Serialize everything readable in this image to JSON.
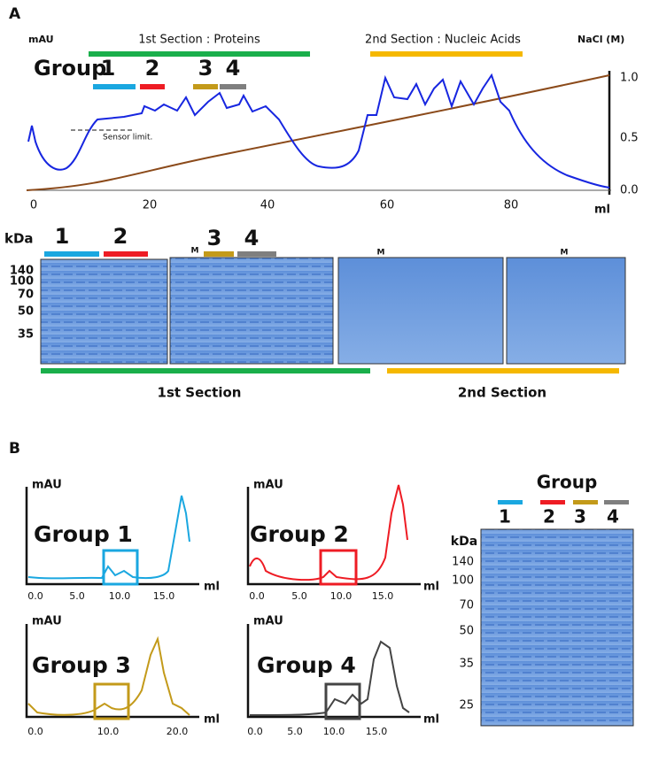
{
  "panel_a": {
    "label": "A",
    "y_label": "mAU",
    "y2_label": "NaCl (M)",
    "x_label": "ml",
    "sections": [
      "1st Section : Proteins",
      "2nd Section : Nucleic Acids"
    ],
    "group_label": "Group",
    "groups": [
      "1",
      "2",
      "3",
      "4"
    ],
    "annotation": "Sensor limit.",
    "xticks": [
      "0",
      "20",
      "40",
      "60",
      "80"
    ],
    "y2ticks": [
      "0.0",
      "0.5",
      "1.0"
    ],
    "gel": {
      "unit": "kDa",
      "markers": [
        "140",
        "100",
        "70",
        "50",
        "35"
      ],
      "lanes": [
        "1",
        "2",
        "3",
        "4"
      ],
      "marker_lanes": [
        "M",
        "M",
        "M"
      ],
      "sections": [
        "1st Section",
        "2nd Section"
      ]
    }
  },
  "panel_b": {
    "label": "B",
    "charts": [
      {
        "y_label": "mAU",
        "title": "Group 1",
        "x_label": "ml",
        "xticks": [
          "0.0",
          "5.0",
          "10.0",
          "15.0"
        ]
      },
      {
        "y_label": "mAU",
        "title": "Group 2",
        "x_label": "ml",
        "xticks": [
          "0.0",
          "5.0",
          "10.0",
          "15.0"
        ]
      },
      {
        "y_label": "mAU",
        "title": "Group 3",
        "x_label": "ml",
        "xticks": [
          "0.0",
          "10.0",
          "20.0"
        ]
      },
      {
        "y_label": "mAU",
        "title": "Group 4",
        "x_label": "ml",
        "xticks": [
          "0.0",
          "5.0",
          "10.0",
          "15.0"
        ]
      }
    ],
    "gel": {
      "title": "Group",
      "lanes": [
        "1",
        "2",
        "3",
        "4"
      ],
      "unit": "kDa",
      "markers": [
        "140",
        "100",
        "70",
        "50",
        "35",
        "25"
      ]
    }
  }
}
